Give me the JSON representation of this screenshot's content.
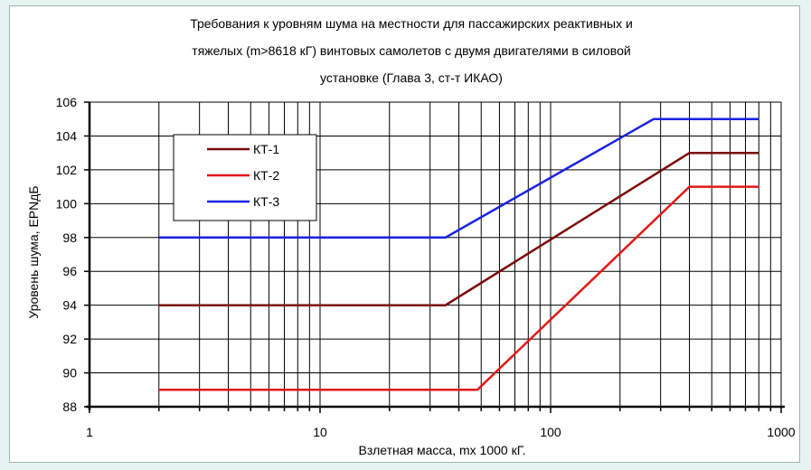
{
  "colors": {
    "page_background": "#e6f4f1",
    "chart_background": "#ffffff",
    "grid": "#000000",
    "kt1": "#7b0a0a",
    "kt2": "#e31717",
    "kt3": "#1a22e0"
  },
  "chart_data": {
    "type": "line",
    "title": "Требования к уровням шума на местности для пассажирских реактивных и тяжелых (m>8618 кГ) винтовых самолетов с двумя двигателями в силовой установке (Глава 3, ст-т ИКАО)",
    "title_lines": [
      "Требования к уровням шума на местности для пассажирских реактивных  и",
      "тяжелых (m>8618 кГ) винтовых самолетов с двумя двигателями в силовой",
      "установке (Глава 3, ст-т ИКАО)"
    ],
    "xlabel": "Взлетная масса, mх 1000 кГ.",
    "ylabel": "Уровень шума, EPNдБ",
    "x_scale": "log",
    "xlim": [
      1,
      1000
    ],
    "ylim": [
      88,
      106
    ],
    "x_ticks": [
      "1",
      "10",
      "100",
      "1000"
    ],
    "y_ticks": [
      "88",
      "90",
      "92",
      "94",
      "96",
      "98",
      "100",
      "102",
      "104",
      "106"
    ],
    "grid": true,
    "legend_position": "upper-left",
    "series": [
      {
        "name": "КТ-1",
        "color": "#7b0a0a",
        "x": [
          2,
          35,
          400,
          800
        ],
        "y": [
          94,
          94,
          103,
          103
        ]
      },
      {
        "name": "КТ-2",
        "color": "#e31717",
        "x": [
          2,
          48.1,
          400,
          800
        ],
        "y": [
          89,
          89,
          101,
          101
        ]
      },
      {
        "name": "КТ-3",
        "color": "#1a22e0",
        "x": [
          2,
          35,
          280,
          800
        ],
        "y": [
          98,
          98,
          105,
          105
        ]
      }
    ]
  }
}
